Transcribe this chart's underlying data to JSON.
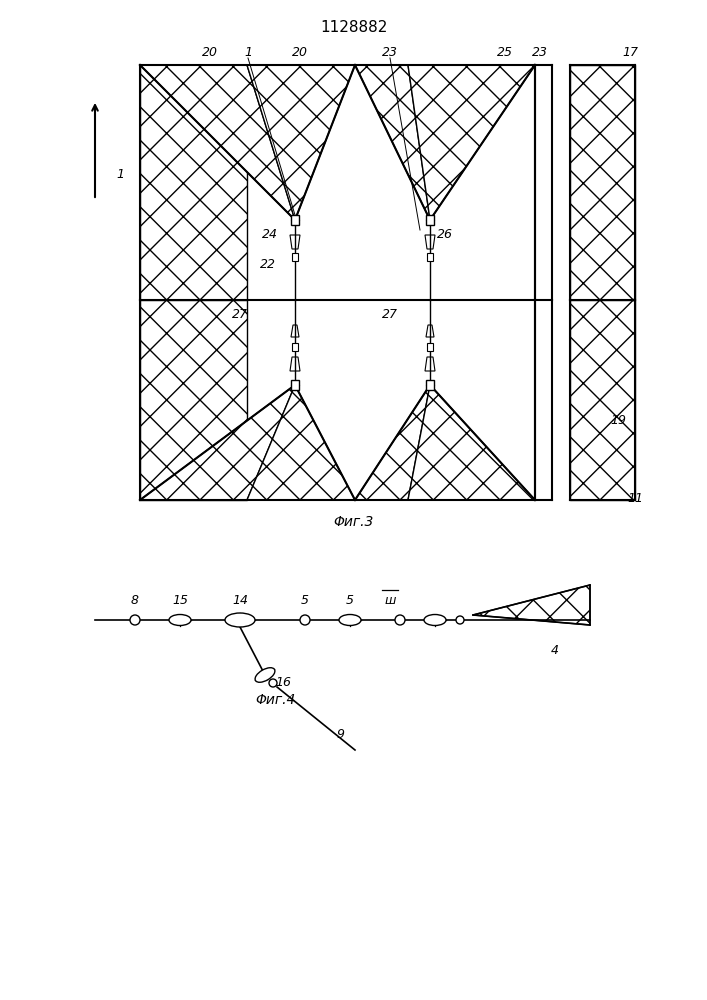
{
  "title": "1128882",
  "fig3_caption": "Φиг.3",
  "fig4_caption": "Φиг.4"
}
